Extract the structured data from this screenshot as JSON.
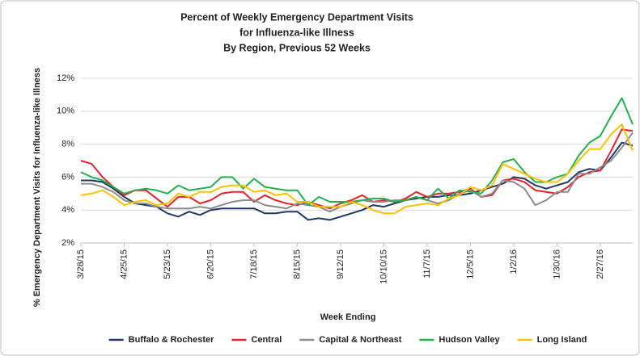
{
  "chart_data": {
    "type": "line",
    "title_lines": [
      "Percent of Weekly Emergency Department Visits",
      "for Influenza-like Illness",
      "By Region, Previous 52 Weeks"
    ],
    "x_label": "Week Ending",
    "y_label": "% Emergency Department Visits for Influenza-like Illness",
    "categories": [
      "3/28/15",
      null,
      null,
      null,
      "4/25/15",
      null,
      null,
      null,
      "5/23/15",
      null,
      null,
      null,
      "6/20/15",
      null,
      null,
      null,
      "7/18/15",
      null,
      null,
      null,
      "8/15/15",
      null,
      null,
      null,
      "9/12/15",
      null,
      null,
      null,
      "10/10/15",
      null,
      null,
      null,
      "11/7/15",
      null,
      null,
      null,
      "12/5/15",
      null,
      null,
      null,
      "1/2/16",
      null,
      null,
      null,
      "1/30/16",
      null,
      null,
      null,
      "2/27/16",
      null,
      null,
      null
    ],
    "ylim": [
      2,
      12
    ],
    "yticks": [
      {
        "value": 2,
        "label": "2%"
      },
      {
        "value": 4,
        "label": "4%"
      },
      {
        "value": 6,
        "label": "6%"
      },
      {
        "value": 8,
        "label": "8%"
      },
      {
        "value": 10,
        "label": "10%"
      },
      {
        "value": 12,
        "label": "12%"
      }
    ],
    "grid": true,
    "legend": "bottom",
    "series": [
      {
        "name": "Buffalo & Rochester",
        "color": "#1f3864",
        "values": [
          5.8,
          5.8,
          5.7,
          5.3,
          4.8,
          4.4,
          4.3,
          4.2,
          3.8,
          3.6,
          3.9,
          3.7,
          4.0,
          4.1,
          4.1,
          4.1,
          4.1,
          3.8,
          3.8,
          3.9,
          3.9,
          3.4,
          3.5,
          3.4,
          3.6,
          3.8,
          4.0,
          4.3,
          4.2,
          4.4,
          4.6,
          4.7,
          4.8,
          4.8,
          4.9,
          4.9,
          5.0,
          5.2,
          5.4,
          5.6,
          6.0,
          5.9,
          5.5,
          5.3,
          5.5,
          5.7,
          6.3,
          6.5,
          6.4,
          7.2,
          8.1,
          7.9
        ]
      },
      {
        "name": "Central",
        "color": "#e8222a",
        "values": [
          7.0,
          6.8,
          6.0,
          5.4,
          4.9,
          5.2,
          5.2,
          4.7,
          4.2,
          4.8,
          4.8,
          4.4,
          4.6,
          5.0,
          5.1,
          5.1,
          4.5,
          4.9,
          4.6,
          4.4,
          4.3,
          4.5,
          4.3,
          4.1,
          4.4,
          4.6,
          4.9,
          4.5,
          4.6,
          4.5,
          4.7,
          5.1,
          4.8,
          5.0,
          5.0,
          5.1,
          5.3,
          4.8,
          4.9,
          5.8,
          5.9,
          5.7,
          5.2,
          5.1,
          5.0,
          5.4,
          6.0,
          6.3,
          6.4,
          7.6,
          8.9,
          8.8
        ]
      },
      {
        "name": "Capital & Northeast",
        "color": "#8c8c8c",
        "values": [
          5.6,
          5.6,
          5.4,
          5.1,
          4.6,
          4.4,
          4.4,
          4.2,
          4.1,
          4.1,
          4.1,
          4.2,
          4.1,
          4.3,
          4.5,
          4.6,
          4.6,
          4.3,
          4.2,
          4.1,
          4.4,
          4.3,
          4.2,
          3.9,
          4.2,
          4.4,
          4.6,
          4.5,
          4.5,
          4.6,
          4.6,
          4.8,
          4.6,
          4.4,
          4.6,
          5.0,
          5.2,
          4.8,
          5.0,
          5.8,
          5.7,
          5.3,
          4.3,
          4.6,
          5.1,
          5.1,
          6.2,
          6.2,
          6.6,
          7.0,
          7.8,
          8.7
        ]
      },
      {
        "name": "Hudson Valley",
        "color": "#22b14c",
        "values": [
          6.3,
          6.0,
          5.8,
          5.4,
          5.0,
          5.2,
          5.3,
          5.2,
          5.0,
          5.5,
          5.2,
          5.3,
          5.4,
          6.0,
          6.0,
          5.3,
          5.9,
          5.4,
          5.3,
          5.2,
          5.2,
          4.3,
          4.8,
          4.5,
          4.5,
          4.5,
          4.6,
          4.7,
          4.7,
          4.5,
          4.6,
          4.8,
          4.6,
          5.3,
          4.7,
          5.2,
          5.1,
          5.0,
          5.8,
          6.9,
          7.1,
          6.3,
          5.7,
          5.7,
          6.0,
          6.2,
          7.3,
          8.1,
          8.5,
          9.7,
          10.8,
          9.2
        ]
      },
      {
        "name": "Long Island",
        "color": "#ffc000",
        "values": [
          4.9,
          5.0,
          5.2,
          4.8,
          4.3,
          4.5,
          4.6,
          4.3,
          4.4,
          5.0,
          4.8,
          5.1,
          5.1,
          5.4,
          5.5,
          5.5,
          5.1,
          5.2,
          4.9,
          5.0,
          4.5,
          4.5,
          4.2,
          4.2,
          4.2,
          4.5,
          4.3,
          4.0,
          3.8,
          3.8,
          4.2,
          4.3,
          4.4,
          4.3,
          4.7,
          4.9,
          5.4,
          5.2,
          5.5,
          6.8,
          6.5,
          6.2,
          5.9,
          5.7,
          5.7,
          6.2,
          7.0,
          7.7,
          7.7,
          8.6,
          9.2,
          7.6
        ]
      }
    ]
  }
}
